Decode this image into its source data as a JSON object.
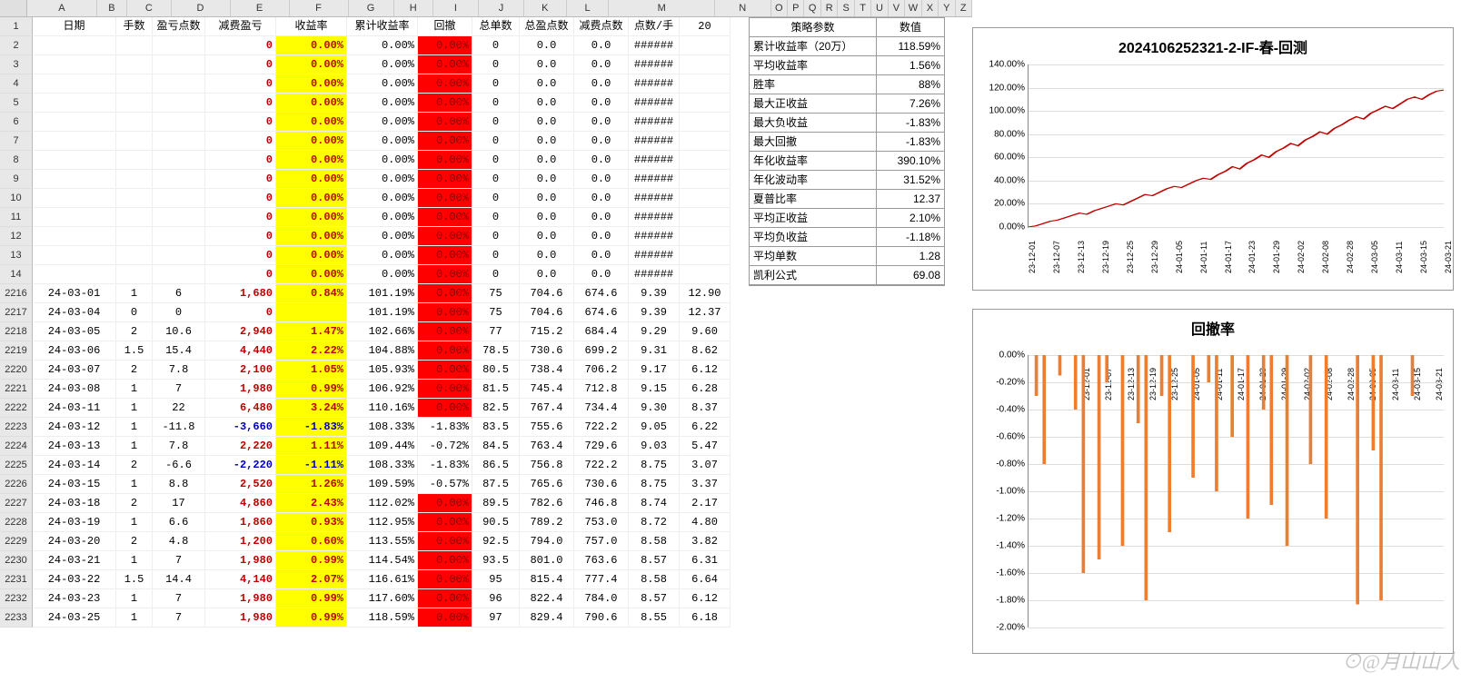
{
  "colWidths": {
    "A": 92,
    "B": 40,
    "C": 58,
    "D": 78,
    "E": 78,
    "F": 78,
    "G": 60,
    "H": 52,
    "I": 60,
    "J": 60,
    "K": 56,
    "L": 56
  },
  "colLetters": [
    "A",
    "B",
    "C",
    "D",
    "E",
    "F",
    "G",
    "H",
    "I",
    "J",
    "K",
    "L",
    "M",
    "N",
    "O",
    "P",
    "Q",
    "R",
    "S",
    "T",
    "U",
    "V",
    "W",
    "X",
    "Y",
    "Z"
  ],
  "headers": {
    "A": "日期",
    "B": "手数",
    "C": "盈亏点数",
    "D": "减费盈亏",
    "E": "收益率",
    "F": "累计收益率",
    "G": "回撤",
    "H": "总单数",
    "I": "总盈点数",
    "J": "减费点数",
    "K": "点数/手",
    "L": "20"
  },
  "topRows": [
    2,
    3,
    4,
    5,
    6,
    7,
    8,
    9,
    10,
    11,
    12,
    13,
    14
  ],
  "topVals": {
    "D": "0",
    "E": "0.00%",
    "F": "0.00%",
    "G": "0.00%",
    "H": "0",
    "I": "0.0",
    "J": "0.0",
    "K": "######"
  },
  "dataRows": [
    {
      "r": 2216,
      "A": "24-03-01",
      "B": "1",
      "C": "6",
      "D": "1,680",
      "E": "0.84%",
      "F": "101.19%",
      "G": "0.00%",
      "H": "75",
      "I": "704.6",
      "J": "674.6",
      "K": "9.39",
      "L": "12.90",
      "neg": false,
      "gred": true
    },
    {
      "r": 2217,
      "A": "24-03-04",
      "B": "0",
      "C": "0",
      "D": "0",
      "E": "",
      "F": "101.19%",
      "G": "0.00%",
      "H": "75",
      "I": "704.6",
      "J": "674.6",
      "K": "9.39",
      "L": "12.37",
      "neg": false,
      "gred": true
    },
    {
      "r": 2218,
      "A": "24-03-05",
      "B": "2",
      "C": "10.6",
      "D": "2,940",
      "E": "1.47%",
      "F": "102.66%",
      "G": "0.00%",
      "H": "77",
      "I": "715.2",
      "J": "684.4",
      "K": "9.29",
      "L": "9.60",
      "neg": false,
      "gred": true
    },
    {
      "r": 2219,
      "A": "24-03-06",
      "B": "1.5",
      "C": "15.4",
      "D": "4,440",
      "E": "2.22%",
      "F": "104.88%",
      "G": "0.00%",
      "H": "78.5",
      "I": "730.6",
      "J": "699.2",
      "K": "9.31",
      "L": "8.62",
      "neg": false,
      "gred": true
    },
    {
      "r": 2220,
      "A": "24-03-07",
      "B": "2",
      "C": "7.8",
      "D": "2,100",
      "E": "1.05%",
      "F": "105.93%",
      "G": "0.00%",
      "H": "80.5",
      "I": "738.4",
      "J": "706.2",
      "K": "9.17",
      "L": "6.12",
      "neg": false,
      "gred": true
    },
    {
      "r": 2221,
      "A": "24-03-08",
      "B": "1",
      "C": "7",
      "D": "1,980",
      "E": "0.99%",
      "F": "106.92%",
      "G": "0.00%",
      "H": "81.5",
      "I": "745.4",
      "J": "712.8",
      "K": "9.15",
      "L": "6.28",
      "neg": false,
      "gred": true
    },
    {
      "r": 2222,
      "A": "24-03-11",
      "B": "1",
      "C": "22",
      "D": "6,480",
      "E": "3.24%",
      "F": "110.16%",
      "G": "0.00%",
      "H": "82.5",
      "I": "767.4",
      "J": "734.4",
      "K": "9.30",
      "L": "8.37",
      "neg": false,
      "gred": true
    },
    {
      "r": 2223,
      "A": "24-03-12",
      "B": "1",
      "C": "-11.8",
      "D": "-3,660",
      "E": "-1.83%",
      "F": "108.33%",
      "G": "-1.83%",
      "H": "83.5",
      "I": "755.6",
      "J": "722.2",
      "K": "9.05",
      "L": "6.22",
      "neg": true,
      "gred": false
    },
    {
      "r": 2224,
      "A": "24-03-13",
      "B": "1",
      "C": "7.8",
      "D": "2,220",
      "E": "1.11%",
      "F": "109.44%",
      "G": "-0.72%",
      "H": "84.5",
      "I": "763.4",
      "J": "729.6",
      "K": "9.03",
      "L": "5.47",
      "neg": false,
      "gred": false
    },
    {
      "r": 2225,
      "A": "24-03-14",
      "B": "2",
      "C": "-6.6",
      "D": "-2,220",
      "E": "-1.11%",
      "F": "108.33%",
      "G": "-1.83%",
      "H": "86.5",
      "I": "756.8",
      "J": "722.2",
      "K": "8.75",
      "L": "3.07",
      "neg": true,
      "gred": false
    },
    {
      "r": 2226,
      "A": "24-03-15",
      "B": "1",
      "C": "8.8",
      "D": "2,520",
      "E": "1.26%",
      "F": "109.59%",
      "G": "-0.57%",
      "H": "87.5",
      "I": "765.6",
      "J": "730.6",
      "K": "8.75",
      "L": "3.37",
      "neg": false,
      "gred": false
    },
    {
      "r": 2227,
      "A": "24-03-18",
      "B": "2",
      "C": "17",
      "D": "4,860",
      "E": "2.43%",
      "F": "112.02%",
      "G": "0.00%",
      "H": "89.5",
      "I": "782.6",
      "J": "746.8",
      "K": "8.74",
      "L": "2.17",
      "neg": false,
      "gred": true
    },
    {
      "r": 2228,
      "A": "24-03-19",
      "B": "1",
      "C": "6.6",
      "D": "1,860",
      "E": "0.93%",
      "F": "112.95%",
      "G": "0.00%",
      "H": "90.5",
      "I": "789.2",
      "J": "753.0",
      "K": "8.72",
      "L": "4.80",
      "neg": false,
      "gred": true
    },
    {
      "r": 2229,
      "A": "24-03-20",
      "B": "2",
      "C": "4.8",
      "D": "1,200",
      "E": "0.60%",
      "F": "113.55%",
      "G": "0.00%",
      "H": "92.5",
      "I": "794.0",
      "J": "757.0",
      "K": "8.58",
      "L": "3.82",
      "neg": false,
      "gred": true
    },
    {
      "r": 2230,
      "A": "24-03-21",
      "B": "1",
      "C": "7",
      "D": "1,980",
      "E": "0.99%",
      "F": "114.54%",
      "G": "0.00%",
      "H": "93.5",
      "I": "801.0",
      "J": "763.6",
      "K": "8.57",
      "L": "6.31",
      "neg": false,
      "gred": true
    },
    {
      "r": 2231,
      "A": "24-03-22",
      "B": "1.5",
      "C": "14.4",
      "D": "4,140",
      "E": "2.07%",
      "F": "116.61%",
      "G": "0.00%",
      "H": "95",
      "I": "815.4",
      "J": "777.4",
      "K": "8.58",
      "L": "6.64",
      "neg": false,
      "gred": true
    },
    {
      "r": 2232,
      "A": "24-03-23",
      "B": "1",
      "C": "7",
      "D": "1,980",
      "E": "0.99%",
      "F": "117.60%",
      "G": "0.00%",
      "H": "96",
      "I": "822.4",
      "J": "784.0",
      "K": "8.57",
      "L": "6.12",
      "neg": false,
      "gred": true
    },
    {
      "r": 2233,
      "A": "24-03-25",
      "B": "1",
      "C": "7",
      "D": "1,980",
      "E": "0.99%",
      "F": "118.59%",
      "G": "0.00%",
      "H": "97",
      "I": "829.4",
      "J": "790.6",
      "K": "8.55",
      "L": "6.18",
      "neg": false,
      "gred": true
    }
  ],
  "stats": {
    "header": {
      "l": "策略参数",
      "v": "数值"
    },
    "rows": [
      {
        "l": "累计收益率（20万）",
        "v": "118.59%"
      },
      {
        "l": "平均收益率",
        "v": "1.56%"
      },
      {
        "l": "胜率",
        "v": "88%"
      },
      {
        "l": "最大正收益",
        "v": "7.26%"
      },
      {
        "l": "最大负收益",
        "v": "-1.83%"
      },
      {
        "l": "最大回撤",
        "v": "-1.83%"
      },
      {
        "l": "年化收益率",
        "v": "390.10%"
      },
      {
        "l": "年化波动率",
        "v": "31.52%"
      },
      {
        "l": "夏普比率",
        "v": "12.37"
      },
      {
        "l": "平均正收益",
        "v": "2.10%"
      },
      {
        "l": "平均负收益",
        "v": "-1.18%"
      },
      {
        "l": "平均单数",
        "v": "1.28"
      },
      {
        "l": "凯利公式",
        "v": "69.08"
      }
    ]
  },
  "chart1": {
    "title": "2024106252321-2-IF-春-回测",
    "ylabels": [
      "0.00%",
      "20.00%",
      "40.00%",
      "60.00%",
      "80.00%",
      "100.00%",
      "120.00%",
      "140.00%"
    ],
    "xlabels": [
      "23-12-01",
      "23-12-07",
      "23-12-13",
      "23-12-19",
      "23-12-25",
      "23-12-29",
      "24-01-05",
      "24-01-11",
      "24-01-17",
      "24-01-23",
      "24-01-29",
      "24-02-02",
      "24-02-08",
      "24-02-28",
      "24-03-05",
      "24-03-11",
      "24-03-15",
      "24-03-21"
    ],
    "lineColor": "#c00000",
    "series": [
      0,
      1,
      3,
      5,
      6,
      8,
      10,
      12,
      11,
      14,
      16,
      18,
      20,
      19,
      22,
      25,
      28,
      27,
      30,
      33,
      35,
      34,
      37,
      40,
      42,
      41,
      45,
      48,
      52,
      50,
      55,
      58,
      62,
      60,
      65,
      68,
      72,
      70,
      75,
      78,
      82,
      80,
      85,
      88,
      92,
      95,
      93,
      98,
      101,
      104,
      102,
      106,
      110,
      112,
      110,
      114,
      117,
      118
    ]
  },
  "chart2": {
    "title": "回撤率",
    "ylabels": [
      "0.00%",
      "-0.20%",
      "-0.40%",
      "-0.60%",
      "-0.80%",
      "-1.00%",
      "-1.20%",
      "-1.40%",
      "-1.60%",
      "-1.80%",
      "-2.00%"
    ],
    "xlabels": [
      "23-12-01",
      "23-12-07",
      "23-12-13",
      "23-12-19",
      "23-12-25",
      "24-01-05",
      "24-01-11",
      "24-01-17",
      "24-01-23",
      "24-01-29",
      "24-02-02",
      "24-02-08",
      "24-02-28",
      "24-03-05",
      "24-03-11",
      "24-03-15",
      "24-03-21"
    ],
    "barColor": "#ed7d31",
    "bars": [
      0,
      -0.3,
      -0.8,
      0,
      -0.15,
      0,
      -0.4,
      -1.6,
      0,
      -1.5,
      -0.2,
      0,
      -1.4,
      0,
      -0.5,
      -1.8,
      0,
      -0.3,
      -1.3,
      0,
      0,
      -0.9,
      0,
      -0.2,
      -1.0,
      0,
      -0.6,
      0,
      -1.2,
      0,
      -0.4,
      -1.1,
      0,
      -1.4,
      0,
      0,
      -0.8,
      0,
      -1.2,
      0,
      0,
      0,
      -1.83,
      0,
      -0.7,
      -1.8,
      0,
      0,
      0,
      -0.3,
      0,
      0,
      0,
      0
    ]
  },
  "watermark": "⊙@月山山人"
}
